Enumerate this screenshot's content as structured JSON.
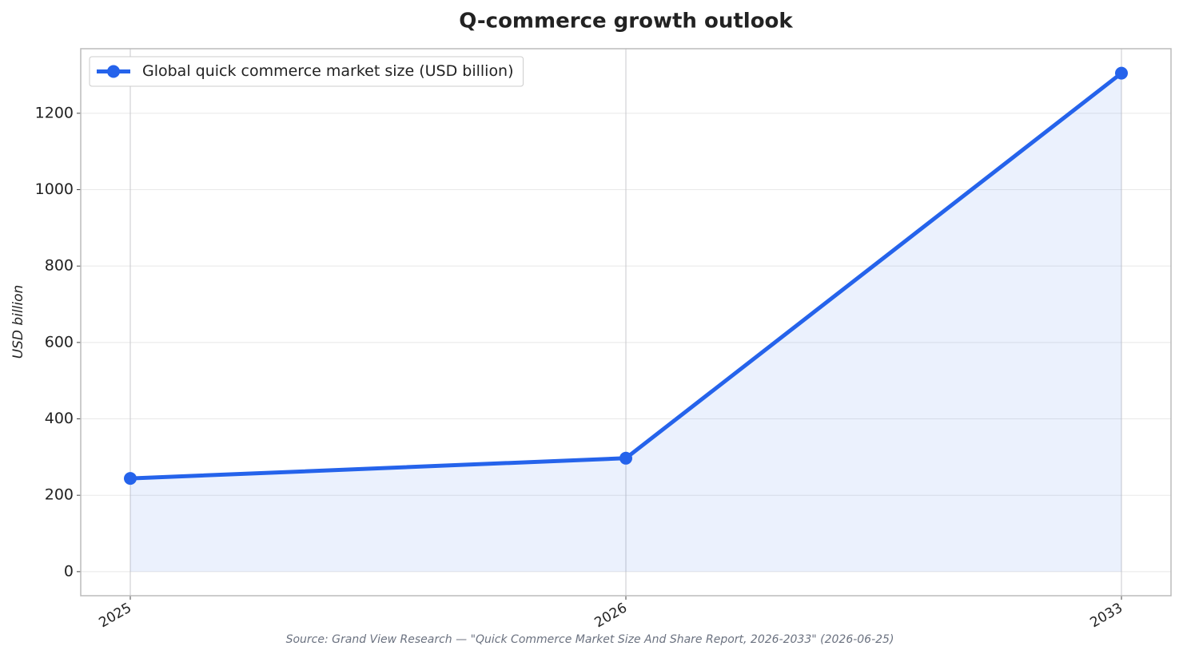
{
  "chart_data": {
    "type": "line",
    "title": "Q-commerce growth outlook",
    "y_label": "USD billion",
    "source": "Source: Grand View Research — \"Quick Commerce Market Size And Share Report, 2026-2033\" (2026-06-25)",
    "categories": [
      "2025",
      "2026",
      "2033"
    ],
    "series": [
      {
        "name": "Global quick commerce market size (USD billion)",
        "color": "#2563eb",
        "values": [
          244,
          297,
          1305
        ]
      }
    ],
    "ylim": [
      -63,
      1369
    ],
    "yticks": [
      0,
      200,
      400,
      600,
      800,
      1000,
      1200
    ],
    "grid": true,
    "legend": "upper-left",
    "area_fill": true
  }
}
